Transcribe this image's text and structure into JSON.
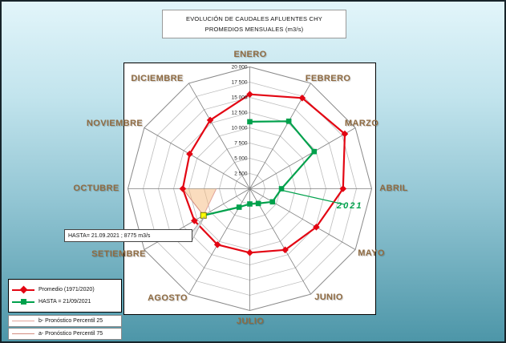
{
  "title": {
    "line1": "EVOLUCIÓN DE CAUDALES AFLUENTES CHY",
    "line2": "PROMEDIOS MENSUALES (m3/s)"
  },
  "chart_data": {
    "type": "radar",
    "categories": [
      "ENERO",
      "FEBRERO",
      "MARZO",
      "ABRIL",
      "MAYO",
      "JUNIO",
      "JULIO",
      "AGOSTO",
      "SETIEMBRE",
      "OCTUBRE",
      "NOVIEMBRE",
      "DICIEMBRE"
    ],
    "axis": {
      "min": 0,
      "max": 20000,
      "step": 2500,
      "tick_labels": [
        "2 500",
        "5 000",
        "7 500",
        "10 000",
        "12 500",
        "15 000",
        "17 500",
        "20 000"
      ]
    },
    "series": [
      {
        "name": "Promedio (1971/2020)",
        "color": "#e30613",
        "marker": "diamond",
        "closed": true,
        "values": [
          15500,
          17200,
          18000,
          15300,
          12600,
          11600,
          10500,
          10600,
          10500,
          11000,
          11400,
          13000
        ]
      },
      {
        "name": "HASTA = 21/09/2021",
        "color": "#00a14c",
        "marker": "square",
        "closed": false,
        "values": [
          11000,
          12800,
          12200,
          5200,
          4300,
          2800,
          2500,
          3500,
          8775,
          null,
          null,
          null
        ]
      }
    ],
    "forecast": {
      "label_p25": "b- Pronóstico Percentil 25",
      "label_p75": "a- Pronóstico Percentil 75",
      "anchor_month": "SETIEMBRE",
      "anchor_value": 8775,
      "target_month": "OCTUBRE",
      "p25": 5500,
      "p75": 11000,
      "fill": "#f5b97e",
      "line_color_p25": "#e2a49a",
      "line_color_p75": "#d38d80"
    },
    "highlight_point": {
      "month": "SETIEMBRE",
      "value": 8775,
      "color": "#ffff00"
    }
  },
  "annotation": {
    "text": "HASTA= 21.09.2021 ; 8775 m3/s"
  },
  "year_label": {
    "text": "2021",
    "color": "#00a14c"
  },
  "legend": {
    "items": [
      {
        "label": "Promedio (1971/2020)",
        "color": "#e30613",
        "marker": "diamond"
      },
      {
        "label": "HASTA = 21/09/2021",
        "color": "#00a14c",
        "marker": "square"
      },
      {
        "label": "b- Pronóstico Percentil 25",
        "color": "#e2a49a",
        "marker": "line"
      },
      {
        "label": "a- Pronóstico Percentil 75",
        "color": "#d38d80",
        "marker": "line"
      }
    ]
  }
}
